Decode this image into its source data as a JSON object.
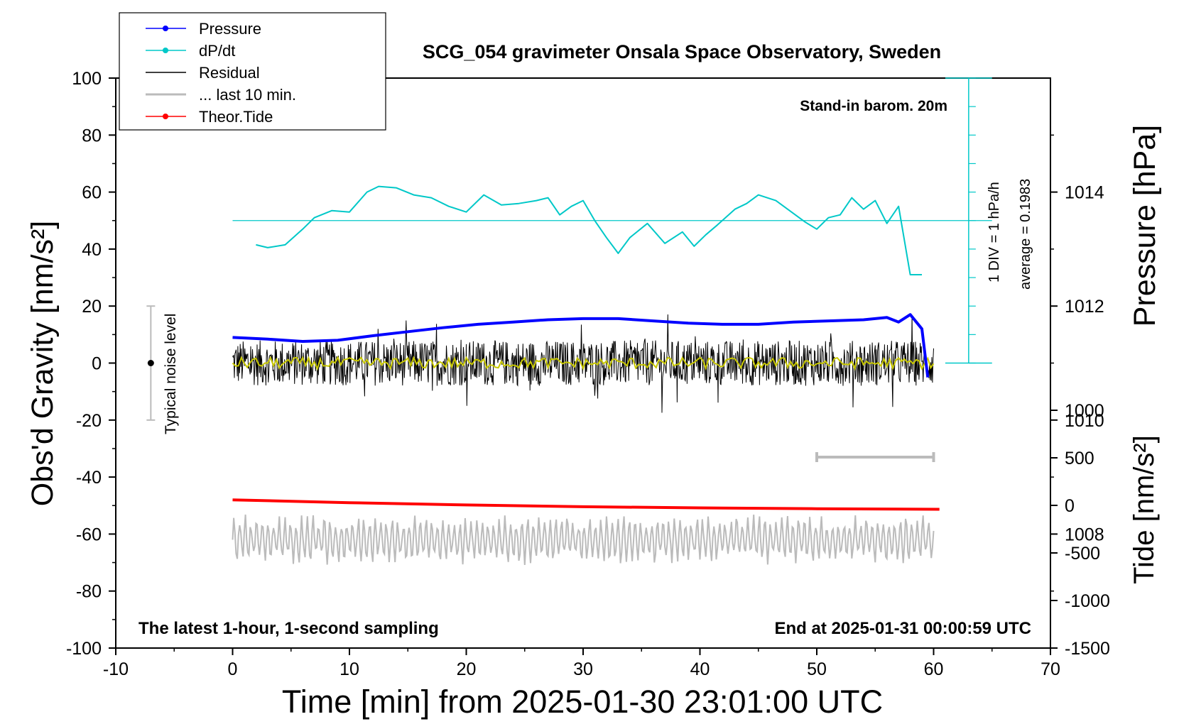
{
  "chart_data": {
    "type": "line",
    "title": "SCG_054 gravimeter Onsala Space Observatory, Sweden",
    "xlabel": "Time [min] from 2025-01-30 23:01:00 UTC",
    "ylabel_left": "Obs'd Gravity [nm/s²]",
    "ylabel_right_top": "Pressure [hPa]",
    "ylabel_right_bottom": "Tide [nm/s²]",
    "xlim": [
      -10,
      70
    ],
    "ylim": [
      -100,
      100
    ],
    "x_ticks": [
      "-10",
      "0",
      "10",
      "20",
      "30",
      "40",
      "50",
      "60",
      "70"
    ],
    "y_ticks": [
      "100",
      "80",
      "60",
      "40",
      "20",
      "0",
      "-20",
      "-40",
      "-60",
      "-80",
      "-100"
    ],
    "pressure_axis": {
      "range": [
        1006,
        1016
      ],
      "ticks": [
        "1014",
        "1012",
        "1010",
        "1008"
      ]
    },
    "tide_axis": {
      "range": [
        -1500,
        1500
      ],
      "ticks": [
        "1000",
        "500",
        "0",
        "-500",
        "-1000",
        "-1500"
      ]
    },
    "annotations": {
      "barometer": "Stand-in barom. 20m",
      "div_label": "1 DIV = 1 hPa/h",
      "average_label": "average = 0.1983",
      "noise_label": "Typical noise level",
      "bottom_left": "The latest 1-hour, 1-second sampling",
      "bottom_right": "End at 2025-01-31 00:00:59 UTC"
    },
    "legend": [
      {
        "label": "Pressure",
        "color": "#0000ff",
        "marker": true
      },
      {
        "label": "dP/dt",
        "color": "#00c8c8",
        "marker": true
      },
      {
        "label": "Residual",
        "color": "#000000",
        "marker": false
      },
      {
        "label": "... last 10 min.",
        "color": "#bbbbbb",
        "marker": false
      },
      {
        "label": "Theor.Tide",
        "color": "#ff0000",
        "marker": true
      }
    ],
    "noise_bar": {
      "x": -7,
      "center": 0,
      "half_range": 20
    },
    "last10_span": [
      50,
      60
    ],
    "series": [
      {
        "name": "Pressure",
        "unit": "hPa",
        "color": "#0000ff",
        "x": [
          0,
          3,
          6,
          9,
          12,
          15,
          18,
          21,
          24,
          27,
          30,
          33,
          36,
          39,
          42,
          45,
          48,
          51,
          54,
          56,
          57,
          58,
          59,
          59.5
        ],
        "values": [
          1011.45,
          1011.42,
          1011.38,
          1011.4,
          1011.48,
          1011.55,
          1011.62,
          1011.68,
          1011.72,
          1011.76,
          1011.78,
          1011.78,
          1011.74,
          1011.7,
          1011.68,
          1011.68,
          1011.72,
          1011.74,
          1011.76,
          1011.8,
          1011.72,
          1011.85,
          1011.6,
          1010.75
        ]
      },
      {
        "name": "dP/dt",
        "unit": "nm/s² scale",
        "color": "#00c8c8",
        "x": [
          2,
          3,
          4.5,
          6,
          7,
          8.5,
          10,
          11.5,
          12.5,
          14,
          15.5,
          17,
          18.5,
          20,
          21.5,
          23,
          24.5,
          26,
          27,
          28,
          29,
          30,
          31,
          32,
          33,
          34,
          35.5,
          37,
          38.5,
          39.5,
          40.5,
          41.5,
          43,
          44,
          45,
          46.5,
          48,
          49,
          50,
          51,
          52,
          53,
          54,
          55,
          56,
          57,
          58,
          59
        ],
        "values": [
          41.5,
          40.5,
          41.5,
          47,
          51,
          53.5,
          53,
          60,
          62,
          61.5,
          59,
          58,
          55,
          53,
          59,
          55.5,
          56,
          57,
          58,
          52,
          55,
          57,
          50,
          44,
          38.5,
          44,
          49,
          42,
          46,
          41,
          45,
          48.5,
          54,
          56,
          59,
          57,
          52.5,
          49.5,
          47,
          51,
          52,
          58,
          54,
          57,
          49,
          55,
          31,
          31
        ]
      },
      {
        "name": "Residual",
        "unit": "nm/s²",
        "color": "#000000",
        "x_range": [
          0,
          60
        ],
        "typical_amplitude": 8,
        "min": -18,
        "max": 20
      },
      {
        "name": "Residual smoothed",
        "unit": "nm/s²",
        "color": "#c8c800",
        "x_range": [
          0,
          60
        ],
        "typical_amplitude": 2
      },
      {
        "name": "... last 10 min.",
        "unit": "nm/s²",
        "color": "#bbbbbb",
        "x_range": [
          0,
          60
        ],
        "offset": -62,
        "typical_amplitude": 6
      },
      {
        "name": "Theor.Tide",
        "unit": "nm/s²",
        "color": "#ff0000",
        "x": [
          0,
          10,
          20,
          30,
          40,
          50,
          60.5
        ],
        "values": [
          -48,
          -49,
          -49.8,
          -50.4,
          -50.8,
          -51.1,
          -51.3
        ]
      }
    ]
  }
}
